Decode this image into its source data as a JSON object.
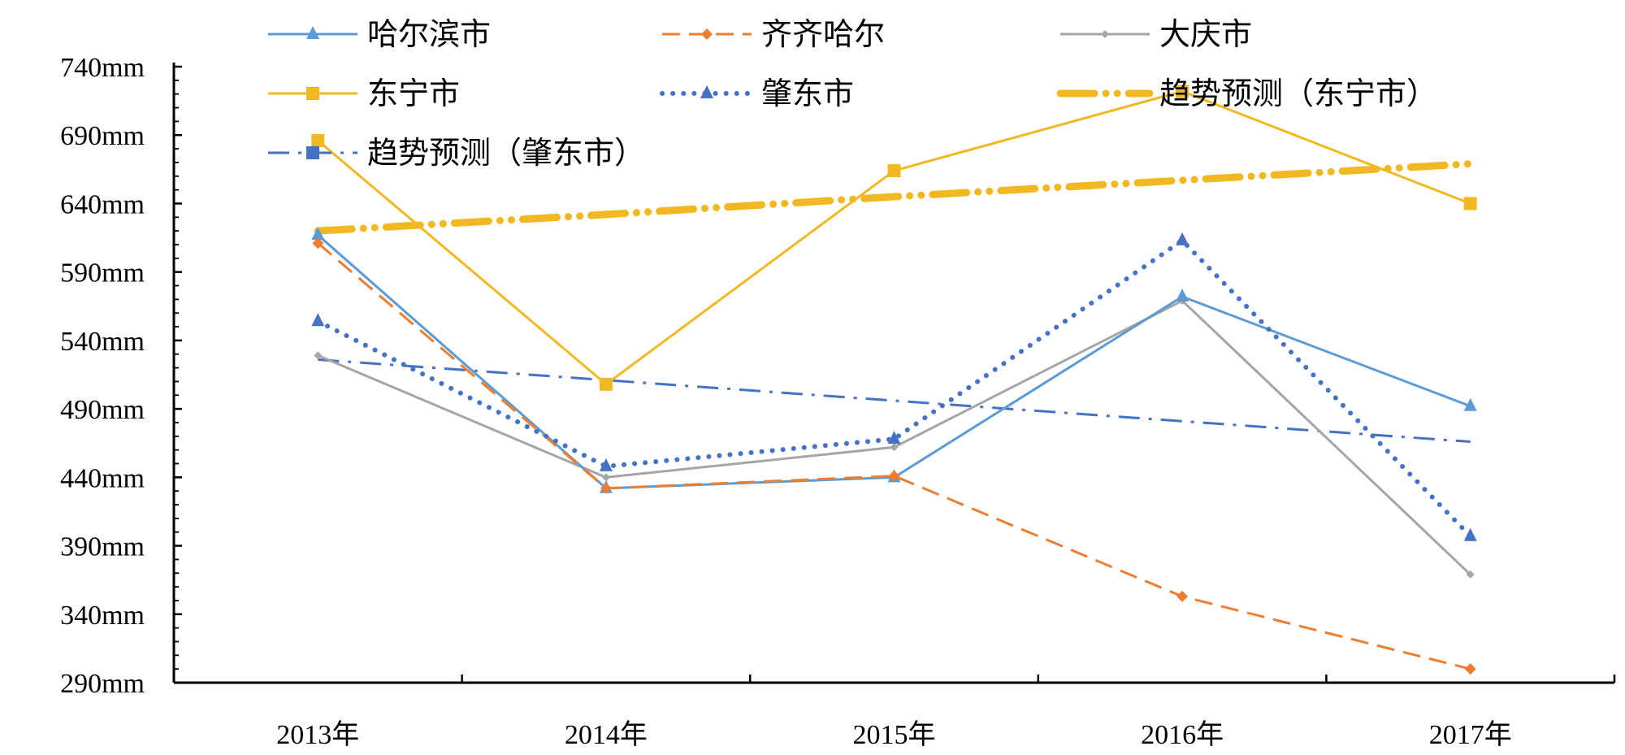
{
  "chart_data": {
    "type": "line",
    "title": "",
    "xlabel": "",
    "ylabel": "",
    "categories": [
      "2013年",
      "2014年",
      "2015年",
      "2016年",
      "2017年"
    ],
    "ylim": [
      290,
      740
    ],
    "y_ticks": [
      290,
      340,
      390,
      440,
      490,
      540,
      590,
      640,
      690,
      740
    ],
    "y_unit": "mm",
    "legend_position": "top",
    "series": [
      {
        "name": "哈尔滨市",
        "color": "#5b9bd5",
        "style": "solid",
        "marker": "triangle",
        "values": [
          617,
          432,
          440,
          572,
          492
        ]
      },
      {
        "name": "齐齐哈尔",
        "color": "#ed7d31",
        "style": "dash",
        "marker": "diamond",
        "values": [
          611,
          432,
          441,
          353,
          300
        ]
      },
      {
        "name": "大庆市",
        "color": "#a5a5a5",
        "style": "solid",
        "marker": "small-diamond",
        "values": [
          529,
          440,
          462,
          569,
          369
        ]
      },
      {
        "name": "东宁市",
        "color": "#f2b822",
        "style": "solid",
        "marker": "square",
        "values": [
          686,
          508,
          664,
          722,
          640
        ]
      },
      {
        "name": "肇东市",
        "color": "#4472c4",
        "style": "dot",
        "marker": "triangle",
        "values": [
          554,
          448,
          468,
          613,
          397
        ]
      },
      {
        "name": "趋势预测（东宁市）",
        "color": "#f2b822",
        "style": "long-dash-dot-dot",
        "marker": "none",
        "trend": true,
        "values": [
          620,
          632,
          645,
          657,
          669
        ]
      },
      {
        "name": "趋势预测（肇东市）",
        "color": "#4472c4",
        "style": "dash-dot",
        "marker": "square-legend",
        "trend": true,
        "values": [
          526,
          511,
          496,
          481,
          466
        ]
      }
    ]
  }
}
